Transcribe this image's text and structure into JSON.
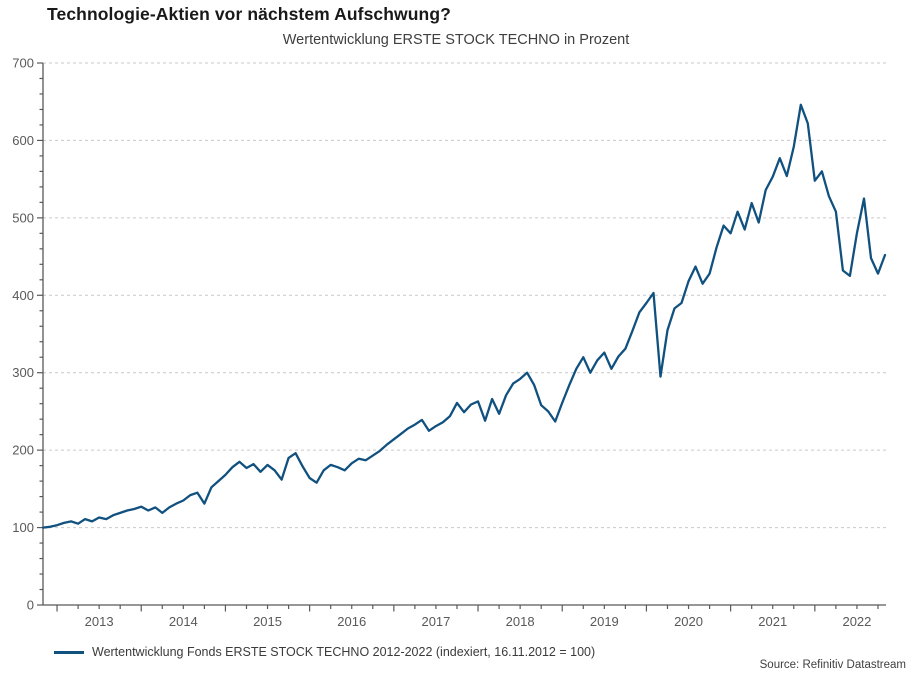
{
  "header": {
    "title": "Technologie-Aktien vor nächstem Aufschwung?",
    "subtitle": "Wertentwicklung ERSTE STOCK TECHNO in Prozent"
  },
  "legend": {
    "label": "Wertentwicklung Fonds ERSTE STOCK TECHNO 2012-2022 (indexiert, 16.11.2012 = 100)"
  },
  "source": {
    "text": "Source: Refinitiv Datastream"
  },
  "colors": {
    "line": "#11517f",
    "grid": "#c9c9c9",
    "axis": "#595959",
    "tick_label": "#595959",
    "title": "#191919",
    "subtitle": "#3f3f3f"
  },
  "chart_data": {
    "type": "line",
    "title": "Technologie-Aktien vor nächstem Aufschwung?",
    "subtitle": "Wertentwicklung ERSTE STOCK TECHNO in Prozent",
    "xlabel": "",
    "ylabel": "",
    "ylim": [
      0,
      700
    ],
    "y_tick_step": 100,
    "y_minor_step": 20,
    "grid": "horizontal-dashed",
    "legend_position": "bottom-left",
    "x_frequency": "monthly",
    "x_start": "2012-11",
    "x_end": "2022-11",
    "x_tick_labels": [
      "2013",
      "2014",
      "2015",
      "2016",
      "2017",
      "2018",
      "2019",
      "2020",
      "2021",
      "2022"
    ],
    "series": [
      {
        "name": "Wertentwicklung Fonds ERSTE STOCK TECHNO 2012-2022 (indexiert, 16.11.2012 = 100)",
        "values": [
          100,
          101,
          103,
          106,
          108,
          105,
          111,
          108,
          113,
          111,
          116,
          119,
          122,
          124,
          127,
          122,
          126,
          119,
          126,
          131,
          135,
          142,
          145,
          131,
          152,
          160,
          168,
          178,
          185,
          177,
          182,
          172,
          181,
          174,
          162,
          190,
          196,
          179,
          164,
          158,
          174,
          181,
          178,
          174,
          183,
          189,
          187,
          193,
          199,
          207,
          214,
          221,
          228,
          233,
          239,
          225,
          231,
          236,
          244,
          261,
          249,
          259,
          263,
          238,
          266,
          247,
          271,
          286,
          292,
          300,
          284,
          258,
          250,
          237,
          261,
          284,
          305,
          320,
          300,
          316,
          326,
          305,
          321,
          331,
          354,
          378,
          390,
          403,
          295,
          355,
          383,
          390,
          418,
          437,
          415,
          428,
          462,
          490,
          480,
          508,
          485,
          519,
          494,
          536,
          553,
          577,
          554,
          592,
          646,
          622,
          548,
          560,
          528,
          508,
          432,
          425,
          480,
          525,
          448,
          428,
          452
        ]
      }
    ]
  }
}
